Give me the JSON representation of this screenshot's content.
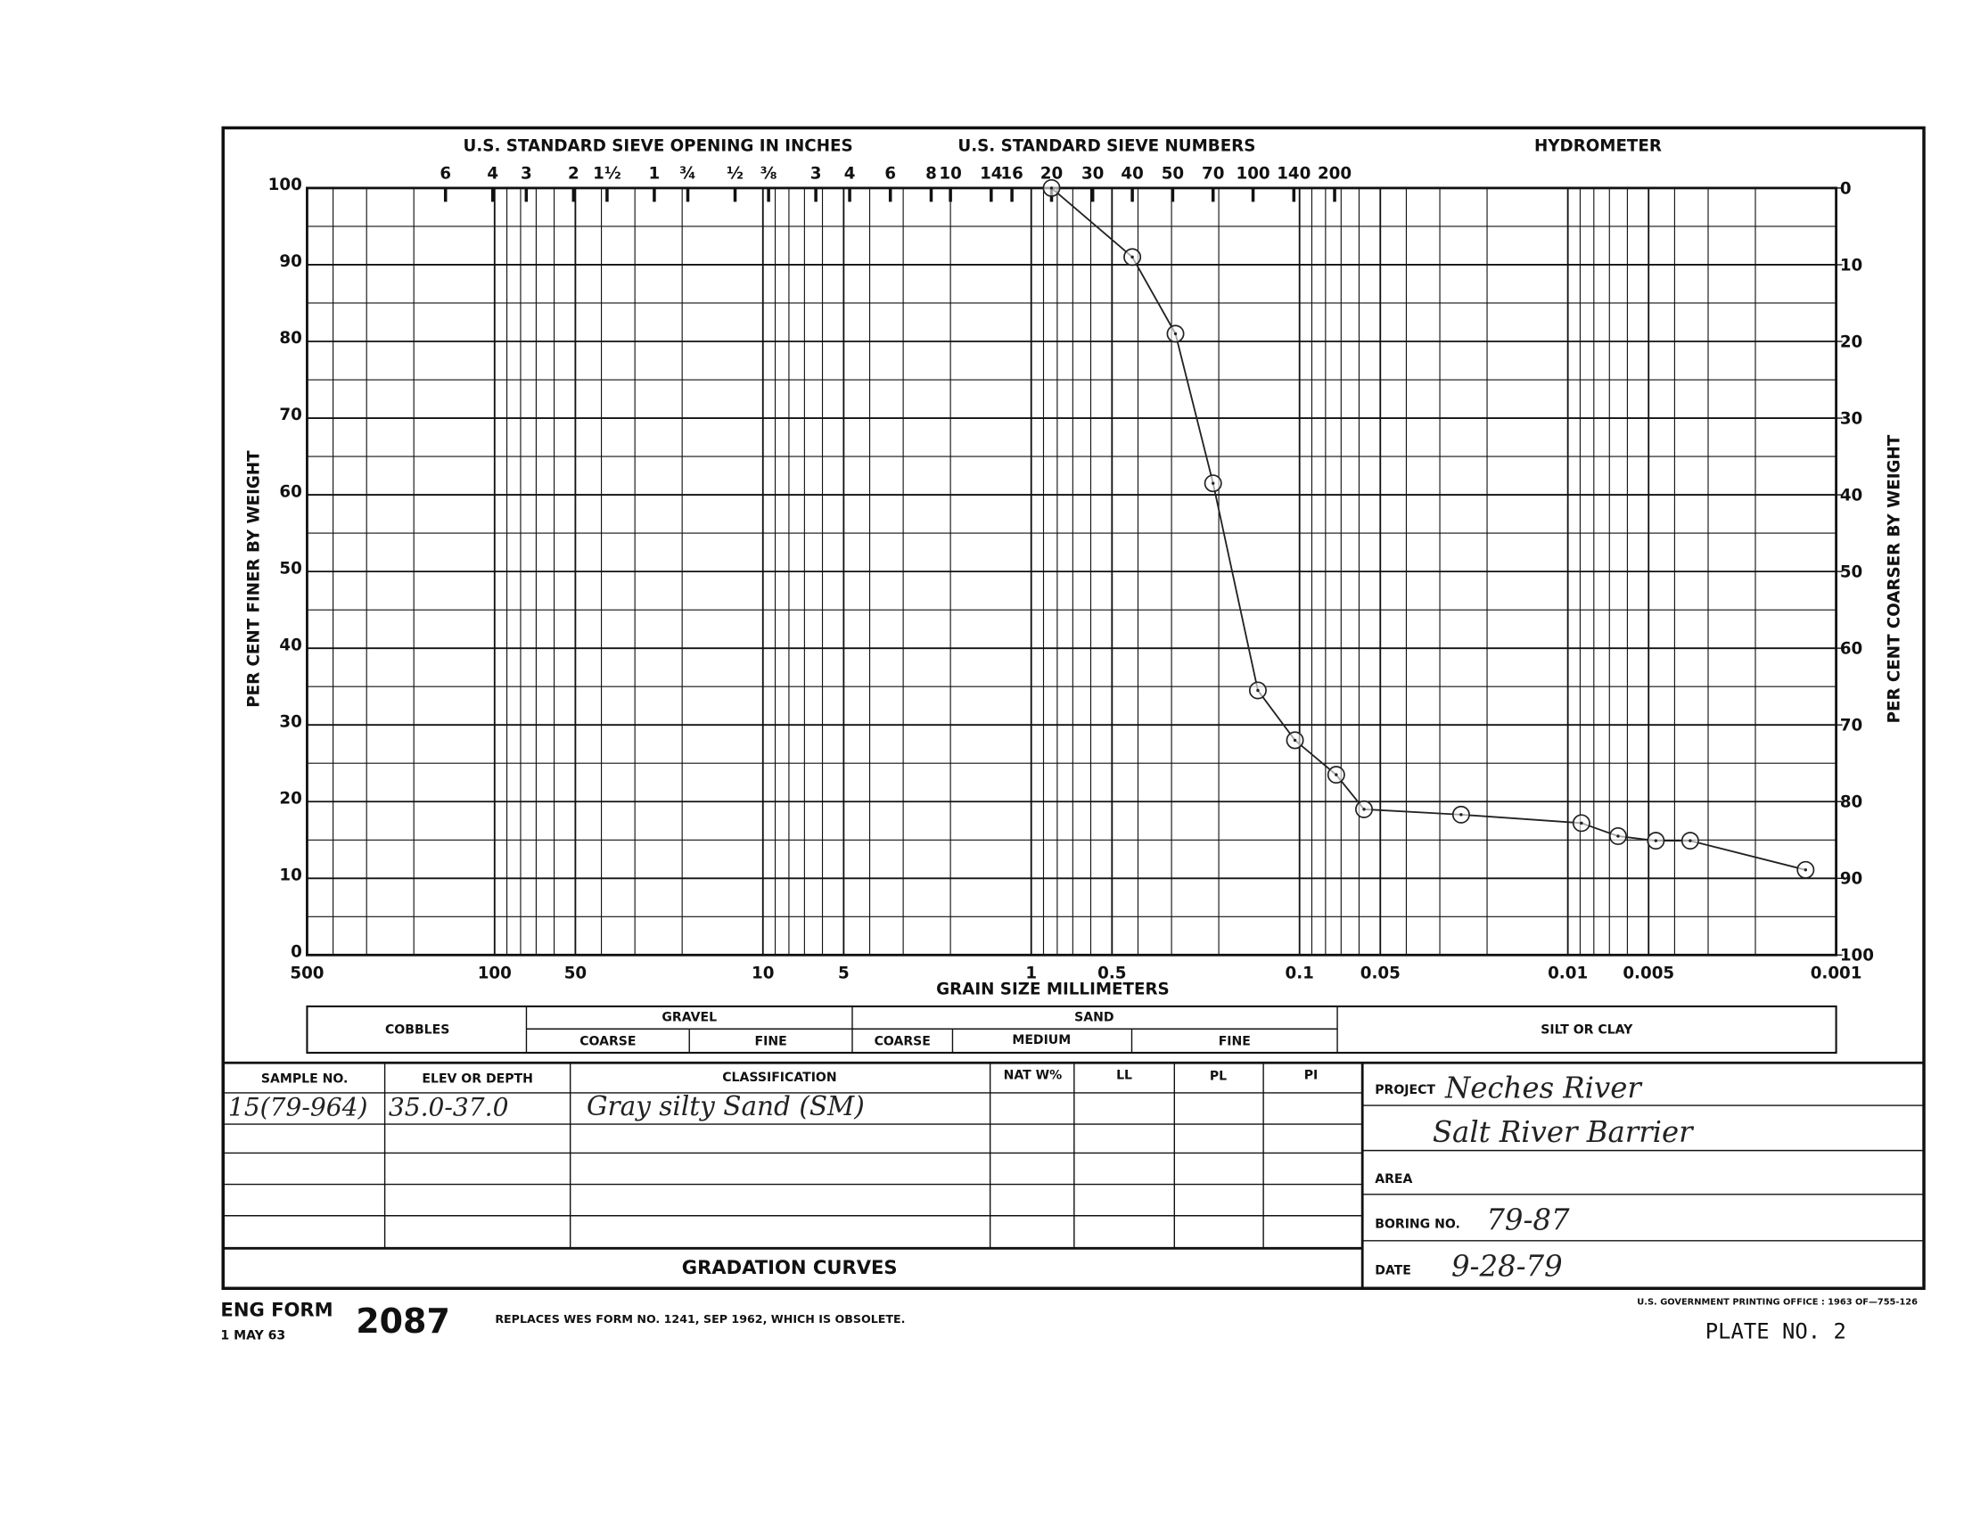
{
  "chart_data": {
    "type": "line",
    "header_labels": [
      "U.S. STANDARD SIEVE OPENING IN INCHES",
      "U.S. STANDARD SIEVE NUMBERS",
      "HYDROMETER"
    ],
    "xlabel": "GRAIN SIZE MILLIMETERS",
    "ylabel": "PER CENT FINER BY WEIGHT",
    "y2label": "PER CENT COARSER BY WEIGHT",
    "xscale": "log",
    "xlim": [
      500,
      0.001
    ],
    "xticks": [
      500,
      100,
      50,
      10,
      5,
      1,
      0.5,
      0.1,
      0.05,
      0.01,
      0.005,
      0.001
    ],
    "ylim": [
      0,
      100
    ],
    "yticks": [
      0,
      10,
      20,
      30,
      40,
      50,
      60,
      70,
      80,
      90,
      100
    ],
    "y2lim": [
      100,
      0
    ],
    "y2ticks": [
      0,
      10,
      20,
      30,
      40,
      50,
      60,
      70,
      80,
      90,
      100
    ],
    "sieve_ticks": [
      {
        "value": 152.4,
        "label": "6"
      },
      {
        "value": 101.6,
        "label": "4"
      },
      {
        "value": 76.2,
        "label": "3"
      },
      {
        "value": 50.8,
        "label": "2"
      },
      {
        "value": 38.1,
        "label": "1½"
      },
      {
        "value": 25.4,
        "label": "1"
      },
      {
        "value": 19.05,
        "label": "¾"
      },
      {
        "value": 12.7,
        "label": "½"
      },
      {
        "value": 9.525,
        "label": "⅜"
      },
      {
        "value": 6.35,
        "label": "3"
      },
      {
        "value": 4.75,
        "label": "4"
      },
      {
        "value": 3.35,
        "label": "6"
      },
      {
        "value": 2.36,
        "label": "8"
      },
      {
        "value": 2.0,
        "label": "10"
      },
      {
        "value": 1.41,
        "label": "14"
      },
      {
        "value": 1.18,
        "label": "16"
      },
      {
        "value": 0.84,
        "label": "20"
      },
      {
        "value": 0.59,
        "label": "30"
      },
      {
        "value": 0.42,
        "label": "40"
      },
      {
        "value": 0.297,
        "label": "50"
      },
      {
        "value": 0.21,
        "label": "70"
      },
      {
        "value": 0.149,
        "label": "100"
      },
      {
        "value": 0.105,
        "label": "140"
      },
      {
        "value": 0.074,
        "label": "200"
      }
    ],
    "grid": true,
    "color": "#222",
    "x": [
      0.84,
      0.42,
      0.29,
      0.21,
      0.143,
      0.104,
      0.073,
      0.0575,
      0.025,
      0.0089,
      0.0065,
      0.0047,
      0.0035,
      0.0013
    ],
    "values": [
      100,
      91,
      81,
      61.5,
      34.5,
      28,
      23.5,
      19,
      18.3,
      17.2,
      15.5,
      14.9,
      14.9,
      11.1
    ],
    "soil_classes": [
      "COBBLES",
      "GRAVEL",
      "SAND",
      "SILT OR CLAY"
    ],
    "soil_subclasses": [
      "COARSE",
      "FINE",
      "COARSE",
      "MEDIUM",
      "FINE"
    ]
  },
  "form": {
    "table": {
      "headers": [
        "SAMPLE NO.",
        "ELEV OR DEPTH",
        "CLASSIFICATION",
        "NAT W%",
        "LL",
        "PL",
        "PI"
      ],
      "rows": [
        [
          "15(79-964)",
          "35.0-37.0",
          "Gray silty Sand (SM)"
        ]
      ]
    },
    "project_label": "PROJECT",
    "project": [
      "Neches River",
      "Salt River Barrier"
    ],
    "area_label": "AREA",
    "boring_label": "BORING NO.",
    "boring": "79-87",
    "date_label": "DATE",
    "date": "9-28-79",
    "footer_title": "GRADATION CURVES",
    "form_label": "ENG FORM",
    "form_date": "1 MAY 63",
    "form_number": "2087",
    "replaces": "REPLACES WES FORM NO. 1241, SEP 1962, WHICH IS OBSOLETE.",
    "printing_office": "U.S. GOVERNMENT PRINTING OFFICE : 1963 OF—755-126",
    "plate": "PLATE NO. 2"
  }
}
